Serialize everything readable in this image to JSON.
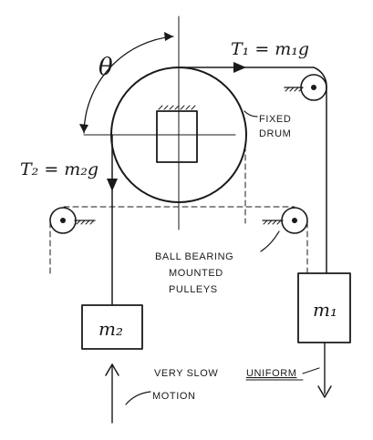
{
  "labels": {
    "theta": "θ",
    "t1": "T₁ = m₁g",
    "t2": "T₂ = m₂g",
    "fixed": "FIXED",
    "drum": "DRUM",
    "ball_bearing": "BALL BEARING",
    "mounted": "MOUNTED",
    "pulleys": "PULLEYS",
    "m1": "m₁",
    "m2": "m₂",
    "very_slow": "VERY SLOW",
    "uniform": "UNIFORM",
    "motion": "MOTION"
  }
}
